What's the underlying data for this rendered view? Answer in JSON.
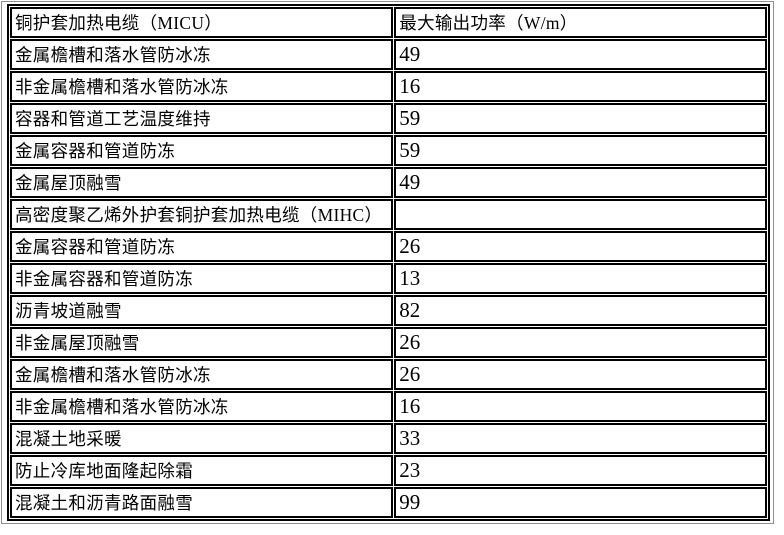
{
  "table": {
    "header": {
      "col1": "铜护套加热电缆（MICU）",
      "col2": "最大输出功率（W/m）"
    },
    "rows": [
      {
        "label": "金属檐槽和落水管防冰冻",
        "value": "49"
      },
      {
        "label": "非金属檐槽和落水管防冰冻",
        "value": "16"
      },
      {
        "label": "容器和管道工艺温度维持",
        "value": "59"
      },
      {
        "label": "金属容器和管道防冻",
        "value": "59"
      },
      {
        "label": "金属屋顶融雪",
        "value": "49"
      },
      {
        "label": "高密度聚乙烯外护套铜护套加热电缆（MIHC）",
        "value": ""
      },
      {
        "label": "金属容器和管道防冻",
        "value": "26"
      },
      {
        "label": "非金属容器和管道防冻",
        "value": "13"
      },
      {
        "label": "沥青坡道融雪",
        "value": "82"
      },
      {
        "label": "非金属屋顶融雪",
        "value": "26"
      },
      {
        "label": "金属檐槽和落水管防冰冻",
        "value": "26"
      },
      {
        "label": "非金属檐槽和落水管防冰冻",
        "value": "16"
      },
      {
        "label": "混凝土地采暖",
        "value": "33"
      },
      {
        "label": "防止冷库地面隆起除霜",
        "value": "23"
      },
      {
        "label": "混凝土和沥青路面融雪",
        "value": "99"
      }
    ]
  },
  "colors": {
    "table_border": "#000000",
    "page_frame": "#8e8e8e",
    "background": "#ffffff",
    "text": "#000000"
  }
}
